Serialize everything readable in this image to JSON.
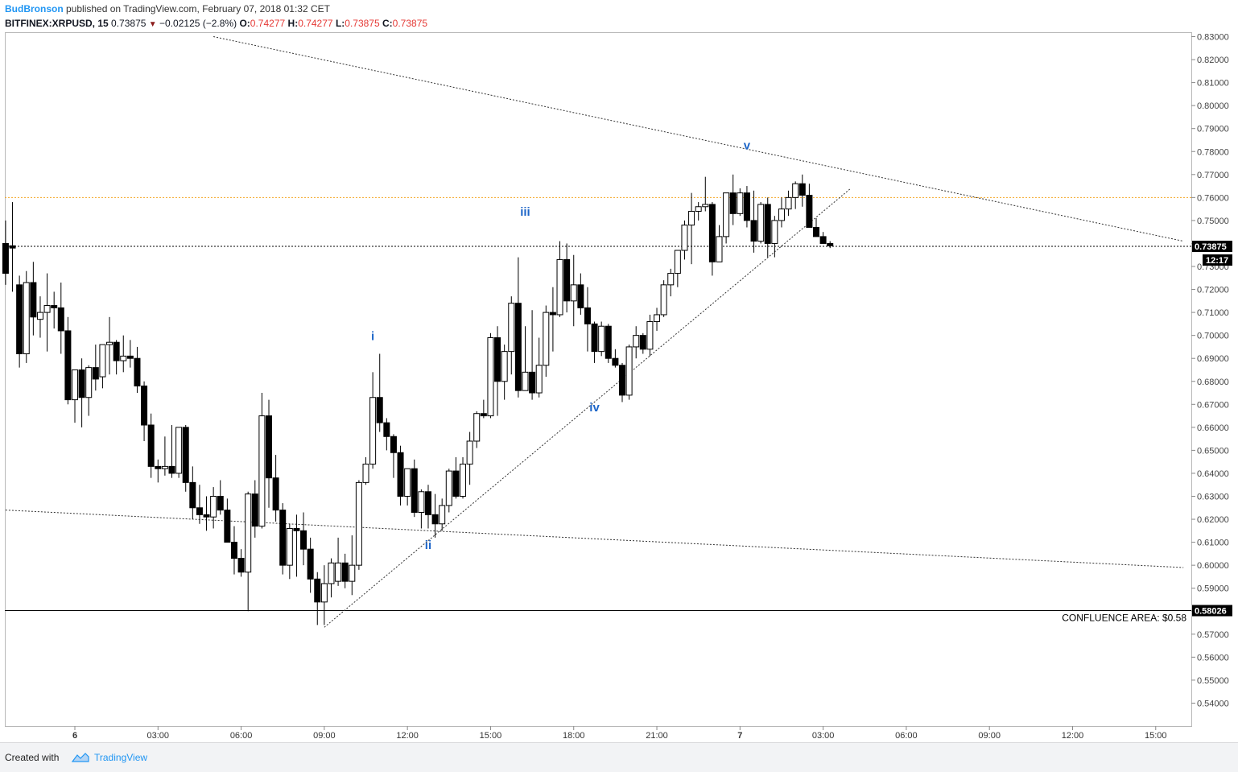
{
  "header": {
    "author": "BudBronson",
    "published": "published on TradingView.com, February 07, 2018 01:32 CET",
    "symbol": "BITFINEX:XRPUSD, 15",
    "last": "0.73875",
    "change": "−0.02125 (−2.8%)",
    "o_label": "O:",
    "o_value": "0.74277",
    "h_label": "H:",
    "h_value": "0.74277",
    "l_label": "L:",
    "l_value": "0.73875",
    "c_label": "C:",
    "c_value": "0.73875"
  },
  "footer": {
    "created_with": "Created with",
    "brand": "TradingView"
  },
  "colors": {
    "up_fill": "#ffffff",
    "down_fill": "#000000",
    "wick": "#000000",
    "wave_label": "#1e66c8",
    "orange_line": "#f5a623",
    "change_red": "#ef5350"
  },
  "chart_data": {
    "type": "candlestick",
    "y_range": [
      0.535,
      0.832
    ],
    "y_ticks": [
      "0.83000",
      "0.82000",
      "0.81000",
      "0.80000",
      "0.79000",
      "0.78000",
      "0.77000",
      "0.76000",
      "0.75000",
      "0.74000",
      "0.73000",
      "0.72000",
      "0.71000",
      "0.70000",
      "0.69000",
      "0.68000",
      "0.67000",
      "0.66000",
      "0.65000",
      "0.64000",
      "0.63000",
      "0.62000",
      "0.61000",
      "0.60000",
      "0.59000",
      "0.58000",
      "0.57000",
      "0.56000",
      "0.55000",
      "0.54000"
    ],
    "y_tick_values": [
      0.83,
      0.82,
      0.81,
      0.8,
      0.79,
      0.78,
      0.77,
      0.76,
      0.75,
      0.74,
      0.73,
      0.72,
      0.71,
      0.7,
      0.69,
      0.68,
      0.67,
      0.66,
      0.65,
      0.64,
      0.63,
      0.62,
      0.61,
      0.6,
      0.59,
      0.58,
      0.57,
      0.56,
      0.55,
      0.54
    ],
    "x_ticks": [
      {
        "label": "6",
        "hours": 0,
        "bold": true
      },
      {
        "label": "03:00",
        "hours": 3
      },
      {
        "label": "06:00",
        "hours": 6
      },
      {
        "label": "09:00",
        "hours": 9
      },
      {
        "label": "12:00",
        "hours": 12
      },
      {
        "label": "15:00",
        "hours": 15
      },
      {
        "label": "18:00",
        "hours": 18
      },
      {
        "label": "21:00",
        "hours": 21
      },
      {
        "label": "7",
        "hours": 24,
        "bold": true
      },
      {
        "label": "03:00",
        "hours": 27
      },
      {
        "label": "06:00",
        "hours": 30
      },
      {
        "label": "09:00",
        "hours": 33
      },
      {
        "label": "12:00",
        "hours": 36
      },
      {
        "label": "15:00",
        "hours": 39
      }
    ],
    "x_range_hours": [
      -2.5,
      40.25
    ],
    "candle_interval_hours": 0.25,
    "candle_start_hours": -2.5,
    "candles": [
      [
        0.74,
        0.75,
        0.722,
        0.727
      ],
      [
        0.739,
        0.758,
        0.719,
        0.738
      ],
      [
        0.722,
        0.726,
        0.686,
        0.692
      ],
      [
        0.692,
        0.728,
        0.688,
        0.723
      ],
      [
        0.723,
        0.732,
        0.7,
        0.708
      ],
      [
        0.707,
        0.717,
        0.699,
        0.71
      ],
      [
        0.71,
        0.727,
        0.693,
        0.713
      ],
      [
        0.713,
        0.719,
        0.703,
        0.712
      ],
      [
        0.712,
        0.723,
        0.692,
        0.702
      ],
      [
        0.702,
        0.708,
        0.67,
        0.672
      ],
      [
        0.672,
        0.685,
        0.662,
        0.685
      ],
      [
        0.685,
        0.69,
        0.66,
        0.673
      ],
      [
        0.673,
        0.687,
        0.665,
        0.686
      ],
      [
        0.686,
        0.696,
        0.676,
        0.681
      ],
      [
        0.682,
        0.694,
        0.677,
        0.696
      ],
      [
        0.696,
        0.708,
        0.683,
        0.697
      ],
      [
        0.697,
        0.698,
        0.683,
        0.689
      ],
      [
        0.689,
        0.7,
        0.684,
        0.691
      ],
      [
        0.691,
        0.698,
        0.686,
        0.69
      ],
      [
        0.69,
        0.695,
        0.675,
        0.678
      ],
      [
        0.678,
        0.68,
        0.654,
        0.661
      ],
      [
        0.661,
        0.666,
        0.638,
        0.643
      ],
      [
        0.643,
        0.646,
        0.636,
        0.642
      ],
      [
        0.642,
        0.656,
        0.639,
        0.643
      ],
      [
        0.643,
        0.661,
        0.638,
        0.64
      ],
      [
        0.64,
        0.659,
        0.638,
        0.66
      ],
      [
        0.66,
        0.661,
        0.632,
        0.636
      ],
      [
        0.636,
        0.643,
        0.62,
        0.625
      ],
      [
        0.625,
        0.635,
        0.618,
        0.622
      ],
      [
        0.622,
        0.63,
        0.615,
        0.621
      ],
      [
        0.621,
        0.634,
        0.616,
        0.63
      ],
      [
        0.63,
        0.637,
        0.622,
        0.624
      ],
      [
        0.624,
        0.629,
        0.61,
        0.61
      ],
      [
        0.61,
        0.617,
        0.596,
        0.603
      ],
      [
        0.603,
        0.607,
        0.595,
        0.597
      ],
      [
        0.597,
        0.632,
        0.58,
        0.631
      ],
      [
        0.631,
        0.637,
        0.612,
        0.617
      ],
      [
        0.617,
        0.675,
        0.616,
        0.665
      ],
      [
        0.665,
        0.672,
        0.625,
        0.638
      ],
      [
        0.638,
        0.648,
        0.619,
        0.624
      ],
      [
        0.624,
        0.627,
        0.596,
        0.6
      ],
      [
        0.6,
        0.618,
        0.594,
        0.616
      ],
      [
        0.616,
        0.622,
        0.595,
        0.615
      ],
      [
        0.615,
        0.623,
        0.6,
        0.607
      ],
      [
        0.607,
        0.612,
        0.588,
        0.594
      ],
      [
        0.594,
        0.597,
        0.574,
        0.584
      ],
      [
        0.584,
        0.6,
        0.574,
        0.592
      ],
      [
        0.592,
        0.603,
        0.586,
        0.601
      ],
      [
        0.593,
        0.612,
        0.591,
        0.601
      ],
      [
        0.601,
        0.605,
        0.59,
        0.593
      ],
      [
        0.593,
        0.613,
        0.587,
        0.6
      ],
      [
        0.6,
        0.637,
        0.598,
        0.636
      ],
      [
        0.636,
        0.647,
        0.635,
        0.644
      ],
      [
        0.644,
        0.684,
        0.642,
        0.673
      ],
      [
        0.673,
        0.692,
        0.658,
        0.662
      ],
      [
        0.662,
        0.664,
        0.65,
        0.656
      ],
      [
        0.656,
        0.657,
        0.638,
        0.649
      ],
      [
        0.649,
        0.652,
        0.626,
        0.63
      ],
      [
        0.63,
        0.642,
        0.626,
        0.642
      ],
      [
        0.642,
        0.646,
        0.621,
        0.623
      ],
      [
        0.623,
        0.633,
        0.616,
        0.632
      ],
      [
        0.632,
        0.635,
        0.616,
        0.622
      ],
      [
        0.622,
        0.631,
        0.612,
        0.618
      ],
      [
        0.618,
        0.629,
        0.615,
        0.626
      ],
      [
        0.626,
        0.642,
        0.623,
        0.641
      ],
      [
        0.641,
        0.647,
        0.629,
        0.63
      ],
      [
        0.63,
        0.647,
        0.629,
        0.644
      ],
      [
        0.644,
        0.658,
        0.635,
        0.654
      ],
      [
        0.654,
        0.667,
        0.651,
        0.666
      ],
      [
        0.666,
        0.672,
        0.664,
        0.665
      ],
      [
        0.665,
        0.701,
        0.664,
        0.699
      ],
      [
        0.699,
        0.704,
        0.665,
        0.68
      ],
      [
        0.68,
        0.696,
        0.672,
        0.693
      ],
      [
        0.693,
        0.717,
        0.683,
        0.714
      ],
      [
        0.714,
        0.734,
        0.673,
        0.676
      ],
      [
        0.676,
        0.704,
        0.676,
        0.684
      ],
      [
        0.684,
        0.711,
        0.672,
        0.675
      ],
      [
        0.675,
        0.699,
        0.673,
        0.687
      ],
      [
        0.687,
        0.713,
        0.682,
        0.71
      ],
      [
        0.71,
        0.721,
        0.693,
        0.709
      ],
      [
        0.709,
        0.741,
        0.708,
        0.733
      ],
      [
        0.733,
        0.74,
        0.71,
        0.715
      ],
      [
        0.715,
        0.735,
        0.704,
        0.722
      ],
      [
        0.722,
        0.727,
        0.709,
        0.712
      ],
      [
        0.712,
        0.721,
        0.693,
        0.705
      ],
      [
        0.705,
        0.706,
        0.688,
        0.693
      ],
      [
        0.693,
        0.706,
        0.691,
        0.704
      ],
      [
        0.704,
        0.705,
        0.688,
        0.69
      ],
      [
        0.69,
        0.694,
        0.686,
        0.687
      ],
      [
        0.687,
        0.688,
        0.671,
        0.674
      ],
      [
        0.674,
        0.696,
        0.672,
        0.695
      ],
      [
        0.695,
        0.704,
        0.69,
        0.7
      ],
      [
        0.7,
        0.701,
        0.692,
        0.694
      ],
      [
        0.694,
        0.709,
        0.691,
        0.706
      ],
      [
        0.706,
        0.712,
        0.702,
        0.709
      ],
      [
        0.709,
        0.724,
        0.708,
        0.722
      ],
      [
        0.722,
        0.729,
        0.717,
        0.727
      ],
      [
        0.727,
        0.736,
        0.721,
        0.737
      ],
      [
        0.737,
        0.75,
        0.733,
        0.748
      ],
      [
        0.748,
        0.762,
        0.731,
        0.754
      ],
      [
        0.754,
        0.758,
        0.75,
        0.756
      ],
      [
        0.756,
        0.769,
        0.754,
        0.757
      ],
      [
        0.757,
        0.758,
        0.726,
        0.732
      ],
      [
        0.732,
        0.748,
        0.732,
        0.743
      ],
      [
        0.743,
        0.762,
        0.74,
        0.762
      ],
      [
        0.762,
        0.77,
        0.748,
        0.753
      ],
      [
        0.753,
        0.764,
        0.752,
        0.762
      ],
      [
        0.762,
        0.765,
        0.747,
        0.75
      ],
      [
        0.75,
        0.763,
        0.736,
        0.741
      ],
      [
        0.741,
        0.758,
        0.74,
        0.757
      ],
      [
        0.757,
        0.76,
        0.734,
        0.74
      ],
      [
        0.74,
        0.752,
        0.734,
        0.75
      ],
      [
        0.75,
        0.76,
        0.747,
        0.755
      ],
      [
        0.755,
        0.763,
        0.752,
        0.76
      ],
      [
        0.76,
        0.767,
        0.755,
        0.766
      ],
      [
        0.766,
        0.77,
        0.756,
        0.761
      ],
      [
        0.761,
        0.766,
        0.747,
        0.747
      ],
      [
        0.747,
        0.751,
        0.744,
        0.743
      ],
      [
        0.743,
        0.745,
        0.74,
        0.74
      ],
      [
        0.74,
        0.741,
        0.738,
        0.739
      ]
    ],
    "wave_labels": [
      {
        "text": "i",
        "time": 10.75,
        "price": 0.698
      },
      {
        "text": "ii",
        "time": 12.75,
        "price": 0.607
      },
      {
        "text": "iii",
        "time": 16.25,
        "price": 0.752
      },
      {
        "text": "iv",
        "time": 18.75,
        "price": 0.667
      },
      {
        "text": "v",
        "time": 24.25,
        "price": 0.781
      }
    ],
    "trendlines": [
      {
        "name": "upper-resistance",
        "style": "dotted",
        "t1": 5.0,
        "p1": 0.83,
        "t2": 40.0,
        "p2": 0.741
      },
      {
        "name": "lower-channel",
        "style": "dotted",
        "t1": -2.5,
        "p1": 0.624,
        "t2": 40.0,
        "p2": 0.599
      },
      {
        "name": "rising-support",
        "style": "dotted",
        "t1": 9.0,
        "p1": 0.573,
        "t2": 28.0,
        "p2": 0.764
      }
    ],
    "horizontal_lines": [
      {
        "name": "resistance-0.76",
        "style": "dotted-orange",
        "price": 0.76
      },
      {
        "name": "current-price",
        "style": "dotted",
        "price": 0.73875
      },
      {
        "name": "confluence",
        "style": "solid",
        "price": 0.58026
      }
    ],
    "price_badges": [
      {
        "label": "0.73875",
        "price": 0.73875
      },
      {
        "label": "0.58026",
        "price": 0.58026
      }
    ],
    "countdown": "12:17",
    "annotation": "CONFLUENCE AREA:  $0.58"
  }
}
